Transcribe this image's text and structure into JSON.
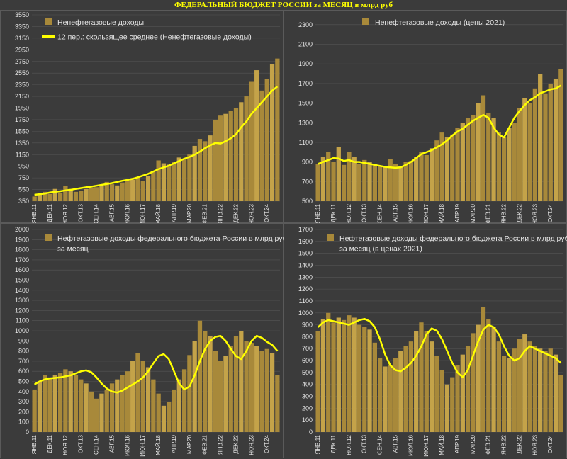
{
  "page": {
    "title": "ФЕДЕРАЛЬНЫЙ БЮДЖЕТ РОССИИ за МЕСЯЦ в млрд руб"
  },
  "colors": {
    "bar": "#a8893a",
    "bar_hi": "#c4a349",
    "line": "#ffff00",
    "grid": "#555555",
    "text": "#e6e6e6",
    "bg": "#3b3b3b"
  },
  "chart_data": [
    {
      "type": "bar",
      "title": "",
      "xlabel": "",
      "ylabel": "",
      "ylim": [
        350,
        3550
      ],
      "yticks": [
        350,
        550,
        750,
        950,
        1150,
        1350,
        1550,
        1750,
        1950,
        2150,
        2350,
        2550,
        2750,
        2950,
        3150,
        3350,
        3550
      ],
      "x_tick_labels": [
        "ЯНВ.11",
        "ДЕК.11",
        "НОЯ.12",
        "ОКТ.13",
        "СЕН.14",
        "АВГ.15",
        "ИЮЛ.16",
        "ИЮН.17",
        "МАЙ.18",
        "АПР.19",
        "МАР.20",
        "ФЕВ.21",
        "ЯНВ.22",
        "ДЕК.22",
        "НОЯ.23",
        "ОКТ.24"
      ],
      "legend_position": "top-left",
      "series": [
        {
          "name": "Ненефтегазовые доходы",
          "kind": "bar",
          "values": [
            430,
            470,
            510,
            475,
            560,
            490,
            610,
            560,
            510,
            530,
            560,
            580,
            590,
            610,
            680,
            640,
            620,
            670,
            690,
            720,
            760,
            700,
            780,
            860,
            1050,
            1000,
            980,
            1030,
            1100,
            1080,
            1150,
            1300,
            1420,
            1380,
            1480,
            1750,
            1820,
            1850,
            1900,
            1950,
            2050,
            2150,
            2400,
            2600,
            2250,
            2450,
            2700,
            2800
          ]
        },
        {
          "name": "12 пер.: скользящее среднее (Ненефтегазовые доходы)",
          "kind": "line",
          "values": [
            460,
            470,
            480,
            500,
            510,
            520,
            535,
            545,
            560,
            575,
            590,
            600,
            615,
            630,
            645,
            660,
            680,
            700,
            715,
            735,
            760,
            790,
            820,
            860,
            900,
            930,
            960,
            1000,
            1040,
            1080,
            1110,
            1150,
            1200,
            1260,
            1310,
            1350,
            1340,
            1380,
            1430,
            1500,
            1620,
            1720,
            1850,
            1950,
            2050,
            2150,
            2250,
            2320
          ]
        }
      ]
    },
    {
      "type": "bar",
      "title": "",
      "xlabel": "",
      "ylabel": "",
      "ylim": [
        500,
        2400
      ],
      "yticks": [
        500,
        700,
        900,
        1100,
        1300,
        1500,
        1700,
        1900,
        2100,
        2300
      ],
      "x_tick_labels": [
        "ЯНВ.11",
        "ДЕК.11",
        "НОЯ.12",
        "ОКТ.13",
        "СЕН.14",
        "АВГ.15",
        "ИЮЛ.16",
        "ИЮН.17",
        "МАЙ.18",
        "АПР.19",
        "МАР.20",
        "ФЕВ.21",
        "ЯНВ.22",
        "ДЕК.22",
        "НОЯ.23",
        "ОКТ.24"
      ],
      "legend_position": "top-right",
      "series": [
        {
          "name": "Ненефтегазовые доходы (цены 2021)",
          "kind": "bar",
          "values": [
            880,
            950,
            1000,
            900,
            1050,
            870,
            1000,
            950,
            880,
            920,
            900,
            880,
            860,
            850,
            930,
            880,
            860,
            900,
            910,
            950,
            1000,
            970,
            1040,
            1120,
            1200,
            1150,
            1180,
            1250,
            1300,
            1350,
            1380,
            1500,
            1580,
            1400,
            1350,
            1200,
            1150,
            1250,
            1300,
            1450,
            1550,
            1500,
            1650,
            1800,
            1600,
            1700,
            1750,
            1850
          ]
        },
        {
          "name": "",
          "kind": "line",
          "values": [
            880,
            900,
            920,
            940,
            935,
            910,
            920,
            900,
            900,
            890,
            880,
            870,
            860,
            850,
            845,
            840,
            845,
            870,
            900,
            940,
            980,
            1000,
            1020,
            1050,
            1080,
            1120,
            1170,
            1210,
            1240,
            1280,
            1320,
            1350,
            1380,
            1350,
            1250,
            1180,
            1150,
            1250,
            1350,
            1420,
            1480,
            1530,
            1560,
            1600,
            1620,
            1640,
            1650,
            1680
          ]
        }
      ]
    },
    {
      "type": "bar",
      "title": "",
      "xlabel": "",
      "ylabel": "",
      "ylim": [
        0,
        2000
      ],
      "yticks": [
        0,
        100,
        200,
        300,
        400,
        500,
        600,
        700,
        800,
        900,
        1000,
        1100,
        1200,
        1300,
        1400,
        1500,
        1600,
        1700,
        1800,
        1900,
        2000
      ],
      "x_tick_labels": [
        "ЯНВ.11",
        "ДЕК.11",
        "НОЯ.12",
        "ОКТ.13",
        "СЕН.14",
        "АВГ.15",
        "ИЮЛ.16",
        "ИЮН.17",
        "МАЙ.18",
        "АПР.19",
        "МАР.20",
        "ФЕВ.21",
        "ЯНВ.22",
        "ДЕК.22",
        "НОЯ.23",
        "ОКТ.24"
      ],
      "legend_position": "top-left",
      "series": [
        {
          "name": "Нефтегазовые доходы федерального бюджета России в млрд руб за месяц",
          "kind": "bar",
          "values": [
            420,
            500,
            560,
            540,
            560,
            580,
            620,
            600,
            560,
            520,
            480,
            400,
            330,
            380,
            420,
            480,
            520,
            560,
            600,
            700,
            780,
            700,
            640,
            520,
            380,
            260,
            300,
            420,
            520,
            620,
            760,
            900,
            1100,
            1000,
            950,
            800,
            700,
            750,
            850,
            950,
            1000,
            900,
            880,
            850,
            800,
            820,
            780,
            560
          ]
        },
        {
          "name": "",
          "kind": "line",
          "values": [
            470,
            500,
            520,
            530,
            535,
            540,
            550,
            560,
            580,
            600,
            610,
            590,
            540,
            480,
            430,
            400,
            390,
            410,
            440,
            470,
            500,
            540,
            600,
            680,
            750,
            770,
            720,
            600,
            480,
            420,
            450,
            560,
            700,
            820,
            900,
            940,
            950,
            900,
            820,
            750,
            720,
            800,
            900,
            950,
            930,
            890,
            860,
            800
          ]
        }
      ]
    },
    {
      "type": "bar",
      "title": "",
      "xlabel": "",
      "ylabel": "",
      "ylim": [
        0,
        1700
      ],
      "yticks": [
        0,
        100,
        200,
        300,
        400,
        500,
        600,
        700,
        800,
        900,
        1000,
        1100,
        1200,
        1300,
        1400,
        1500,
        1600,
        1700
      ],
      "x_tick_labels": [
        "ЯНВ.11",
        "ДЕК.11",
        "НОЯ.12",
        "ОКТ.13",
        "СЕН.14",
        "АВГ.15",
        "ИЮЛ.16",
        "ИЮН.17",
        "МАЙ.18",
        "АПР.19",
        "МАР.20",
        "ФЕВ.21",
        "ЯНВ.22",
        "ДЕК.22",
        "НОЯ.23",
        "ОКТ.24"
      ],
      "legend_position": "top-right",
      "series": [
        {
          "name": "Нефтегазовые доходы федерального бюджета России в млрд руб за месяц (в ценах 2021)",
          "kind": "bar",
          "values": [
            850,
            950,
            1000,
            920,
            960,
            940,
            980,
            960,
            900,
            880,
            860,
            750,
            620,
            550,
            560,
            620,
            680,
            720,
            760,
            850,
            920,
            850,
            760,
            640,
            520,
            400,
            460,
            560,
            650,
            720,
            830,
            900,
            1050,
            950,
            880,
            760,
            640,
            620,
            700,
            780,
            820,
            760,
            720,
            700,
            680,
            700,
            650,
            480
          ]
        },
        {
          "name": "",
          "kind": "line",
          "values": [
            880,
            920,
            940,
            930,
            920,
            910,
            900,
            920,
            940,
            950,
            930,
            880,
            780,
            650,
            560,
            520,
            510,
            540,
            580,
            640,
            720,
            820,
            870,
            850,
            780,
            680,
            580,
            500,
            460,
            520,
            640,
            760,
            860,
            900,
            880,
            820,
            720,
            640,
            600,
            620,
            680,
            720,
            700,
            680,
            660,
            640,
            620,
            580
          ]
        }
      ]
    }
  ]
}
